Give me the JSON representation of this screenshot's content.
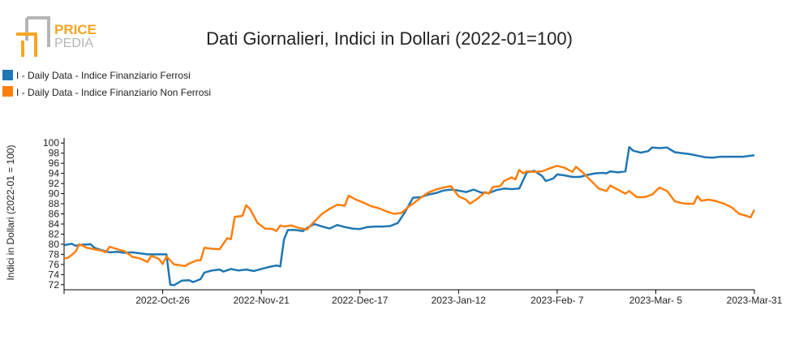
{
  "logo": {
    "line1": "PRICE",
    "line2": "PEDIA"
  },
  "colors": {
    "ferrosi": "#1f77b4",
    "non_ferrosi": "#ff7f0e",
    "logo_orange": "#f5a623",
    "logo_gray": "#b5b5b5"
  },
  "chart_data": {
    "type": "line",
    "title": "Dati Giornalieri, Indici in Dollari (2022-01=100)",
    "ylabel": "Indici in Dollari (2022-01 = 100)",
    "xlabel": "",
    "ylim": [
      71,
      101
    ],
    "y_ticks": [
      72,
      74,
      76,
      78,
      80,
      82,
      84,
      86,
      88,
      90,
      92,
      94,
      96,
      98,
      100
    ],
    "x_range": [
      "2022-09-30",
      "2023-03-31"
    ],
    "x_ticks": [
      {
        "date": "2022-10-26",
        "label": "2022-Oct-26"
      },
      {
        "date": "2022-11-21",
        "label": "2022-Nov-21"
      },
      {
        "date": "2022-12-17",
        "label": "2022-Dec-17"
      },
      {
        "date": "2023-01-12",
        "label": "2023-Jan-12"
      },
      {
        "date": "2023-02-07",
        "label": "2023-Feb- 7"
      },
      {
        "date": "2023-03-05",
        "label": "2023-Mar- 5"
      },
      {
        "date": "2023-03-31",
        "label": "2023-Mar-31"
      }
    ],
    "legend_position": "top-left",
    "grid": false,
    "series": [
      {
        "name": "I - Daily Data - Indice Finanziario Ferrosi",
        "color": "#1f77b4",
        "points": [
          [
            "2022-09-30",
            79.8
          ],
          [
            "2022-10-02",
            80.1
          ],
          [
            "2022-10-03",
            79.7
          ],
          [
            "2022-10-05",
            79.9
          ],
          [
            "2022-10-07",
            80.0
          ],
          [
            "2022-10-08",
            79.3
          ],
          [
            "2022-10-10",
            78.8
          ],
          [
            "2022-10-12",
            78.4
          ],
          [
            "2022-10-14",
            78.5
          ],
          [
            "2022-10-16",
            78.3
          ],
          [
            "2022-10-18",
            78.4
          ],
          [
            "2022-10-20",
            78.2
          ],
          [
            "2022-10-22",
            78.0
          ],
          [
            "2022-10-24",
            78.0
          ],
          [
            "2022-10-26",
            78.0
          ],
          [
            "2022-10-27",
            78.0
          ],
          [
            "2022-10-28",
            72.0
          ],
          [
            "2022-10-29",
            71.9
          ],
          [
            "2022-10-31",
            72.8
          ],
          [
            "2022-11-02",
            72.9
          ],
          [
            "2022-11-03",
            72.5
          ],
          [
            "2022-11-05",
            73.1
          ],
          [
            "2022-11-06",
            74.4
          ],
          [
            "2022-11-08",
            74.8
          ],
          [
            "2022-11-10",
            75.0
          ],
          [
            "2022-11-11",
            74.6
          ],
          [
            "2022-11-13",
            75.1
          ],
          [
            "2022-11-15",
            74.8
          ],
          [
            "2022-11-17",
            75.0
          ],
          [
            "2022-11-19",
            74.7
          ],
          [
            "2022-11-21",
            75.1
          ],
          [
            "2022-11-23",
            75.5
          ],
          [
            "2022-11-25",
            75.8
          ],
          [
            "2022-11-26",
            75.6
          ],
          [
            "2022-11-27",
            81.0
          ],
          [
            "2022-11-28",
            82.8
          ],
          [
            "2022-11-30",
            82.8
          ],
          [
            "2022-12-02",
            82.6
          ],
          [
            "2022-12-03",
            83.2
          ],
          [
            "2022-12-05",
            84.0
          ],
          [
            "2022-12-07",
            83.5
          ],
          [
            "2022-12-09",
            83.1
          ],
          [
            "2022-12-11",
            83.8
          ],
          [
            "2022-12-13",
            83.4
          ],
          [
            "2022-12-15",
            83.1
          ],
          [
            "2022-12-17",
            83.0
          ],
          [
            "2022-12-19",
            83.4
          ],
          [
            "2022-12-21",
            83.5
          ],
          [
            "2022-12-23",
            83.5
          ],
          [
            "2022-12-25",
            83.6
          ],
          [
            "2022-12-27",
            84.2
          ],
          [
            "2022-12-29",
            86.5
          ],
          [
            "2022-12-31",
            89.2
          ],
          [
            "2023-01-02",
            89.3
          ],
          [
            "2023-01-04",
            89.8
          ],
          [
            "2023-01-06",
            90.1
          ],
          [
            "2023-01-08",
            90.6
          ],
          [
            "2023-01-10",
            90.8
          ],
          [
            "2023-01-12",
            90.6
          ],
          [
            "2023-01-14",
            90.3
          ],
          [
            "2023-01-16",
            90.8
          ],
          [
            "2023-01-18",
            90.2
          ],
          [
            "2023-01-20",
            90.1
          ],
          [
            "2023-01-22",
            90.7
          ],
          [
            "2023-01-24",
            91.0
          ],
          [
            "2023-01-26",
            90.9
          ],
          [
            "2023-01-28",
            91.0
          ],
          [
            "2023-01-30",
            94.2
          ],
          [
            "2023-02-01",
            94.5
          ],
          [
            "2023-02-03",
            93.5
          ],
          [
            "2023-02-04",
            92.5
          ],
          [
            "2023-02-06",
            93.0
          ],
          [
            "2023-02-07",
            93.8
          ],
          [
            "2023-02-09",
            93.6
          ],
          [
            "2023-02-11",
            93.3
          ],
          [
            "2023-02-13",
            93.3
          ],
          [
            "2023-02-15",
            93.7
          ],
          [
            "2023-02-17",
            94.0
          ],
          [
            "2023-02-19",
            94.1
          ],
          [
            "2023-02-20",
            94.0
          ],
          [
            "2023-02-21",
            94.4
          ],
          [
            "2023-02-23",
            94.2
          ],
          [
            "2023-02-25",
            94.4
          ],
          [
            "2023-02-26",
            99.2
          ],
          [
            "2023-02-27",
            98.5
          ],
          [
            "2023-03-01",
            98.1
          ],
          [
            "2023-03-03",
            98.4
          ],
          [
            "2023-03-04",
            99.1
          ],
          [
            "2023-03-06",
            99.0
          ],
          [
            "2023-03-08",
            99.1
          ],
          [
            "2023-03-10",
            98.2
          ],
          [
            "2023-03-12",
            98.0
          ],
          [
            "2023-03-14",
            97.8
          ],
          [
            "2023-03-16",
            97.5
          ],
          [
            "2023-03-18",
            97.2
          ],
          [
            "2023-03-20",
            97.1
          ],
          [
            "2023-03-22",
            97.3
          ],
          [
            "2023-03-24",
            97.3
          ],
          [
            "2023-03-26",
            97.3
          ],
          [
            "2023-03-28",
            97.3
          ],
          [
            "2023-03-31",
            97.6
          ]
        ]
      },
      {
        "name": "I - Daily Data - Indice Finanziario Non Ferrosi",
        "color": "#ff7f0e",
        "points": [
          [
            "2022-09-30",
            77.2
          ],
          [
            "2022-10-01",
            77.3
          ],
          [
            "2022-10-03",
            78.5
          ],
          [
            "2022-10-04",
            80.0
          ],
          [
            "2022-10-06",
            79.3
          ],
          [
            "2022-10-08",
            79.0
          ],
          [
            "2022-10-10",
            78.7
          ],
          [
            "2022-10-11",
            78.4
          ],
          [
            "2022-10-12",
            79.5
          ],
          [
            "2022-10-14",
            79.0
          ],
          [
            "2022-10-16",
            78.6
          ],
          [
            "2022-10-18",
            77.5
          ],
          [
            "2022-10-20",
            77.2
          ],
          [
            "2022-10-22",
            76.5
          ],
          [
            "2022-10-23",
            77.7
          ],
          [
            "2022-10-25",
            77.1
          ],
          [
            "2022-10-26",
            76.1
          ],
          [
            "2022-10-27",
            77.6
          ],
          [
            "2022-10-29",
            76.0
          ],
          [
            "2022-10-31",
            75.8
          ],
          [
            "2022-11-01",
            75.7
          ],
          [
            "2022-11-02",
            76.2
          ],
          [
            "2022-11-04",
            76.8
          ],
          [
            "2022-11-05",
            76.8
          ],
          [
            "2022-11-06",
            79.3
          ],
          [
            "2022-11-08",
            79.1
          ],
          [
            "2022-11-10",
            79.0
          ],
          [
            "2022-11-12",
            81.2
          ],
          [
            "2022-11-13",
            81.0
          ],
          [
            "2022-11-14",
            85.4
          ],
          [
            "2022-11-16",
            85.6
          ],
          [
            "2022-11-17",
            87.7
          ],
          [
            "2022-11-18",
            87.0
          ],
          [
            "2022-11-20",
            84.2
          ],
          [
            "2022-11-22",
            83.1
          ],
          [
            "2022-11-24",
            83.0
          ],
          [
            "2022-11-25",
            82.6
          ],
          [
            "2022-11-26",
            83.7
          ],
          [
            "2022-11-27",
            83.5
          ],
          [
            "2022-11-29",
            83.7
          ],
          [
            "2022-12-01",
            83.2
          ],
          [
            "2022-12-03",
            82.9
          ],
          [
            "2022-12-05",
            84.5
          ],
          [
            "2022-12-07",
            86.0
          ],
          [
            "2022-12-09",
            87.0
          ],
          [
            "2022-12-11",
            87.8
          ],
          [
            "2022-12-13",
            87.6
          ],
          [
            "2022-12-14",
            89.6
          ],
          [
            "2022-12-16",
            88.8
          ],
          [
            "2022-12-18",
            88.2
          ],
          [
            "2022-12-20",
            87.5
          ],
          [
            "2022-12-22",
            87.1
          ],
          [
            "2022-12-24",
            86.5
          ],
          [
            "2022-12-26",
            86.0
          ],
          [
            "2022-12-28",
            86.2
          ],
          [
            "2022-12-30",
            87.5
          ],
          [
            "2022-12-31",
            88.0
          ],
          [
            "2023-01-02",
            89.2
          ],
          [
            "2023-01-04",
            90.2
          ],
          [
            "2023-01-06",
            90.8
          ],
          [
            "2023-01-08",
            91.2
          ],
          [
            "2023-01-10",
            91.5
          ],
          [
            "2023-01-12",
            89.5
          ],
          [
            "2023-01-14",
            88.8
          ],
          [
            "2023-01-15",
            88.0
          ],
          [
            "2023-01-17",
            89.0
          ],
          [
            "2023-01-19",
            90.3
          ],
          [
            "2023-01-20",
            90.0
          ],
          [
            "2023-01-21",
            91.3
          ],
          [
            "2023-01-23",
            91.5
          ],
          [
            "2023-01-24",
            92.5
          ],
          [
            "2023-01-26",
            93.2
          ],
          [
            "2023-01-27",
            92.8
          ],
          [
            "2023-01-28",
            94.7
          ],
          [
            "2023-01-29",
            94.0
          ],
          [
            "2023-01-30",
            94.4
          ],
          [
            "2023-02-01",
            94.3
          ],
          [
            "2023-02-03",
            94.4
          ],
          [
            "2023-02-05",
            95.0
          ],
          [
            "2023-02-07",
            95.5
          ],
          [
            "2023-02-09",
            95.1
          ],
          [
            "2023-02-11",
            94.3
          ],
          [
            "2023-02-12",
            95.3
          ],
          [
            "2023-02-14",
            94.0
          ],
          [
            "2023-02-16",
            92.5
          ],
          [
            "2023-02-18",
            91.0
          ],
          [
            "2023-02-20",
            90.5
          ],
          [
            "2023-02-21",
            91.6
          ],
          [
            "2023-02-23",
            90.8
          ],
          [
            "2023-02-25",
            90.0
          ],
          [
            "2023-02-26",
            90.5
          ],
          [
            "2023-02-28",
            89.3
          ],
          [
            "2023-03-02",
            89.3
          ],
          [
            "2023-03-04",
            89.8
          ],
          [
            "2023-03-06",
            91.2
          ],
          [
            "2023-03-08",
            90.5
          ],
          [
            "2023-03-10",
            88.5
          ],
          [
            "2023-03-12",
            88.1
          ],
          [
            "2023-03-13",
            88.0
          ],
          [
            "2023-03-15",
            88.0
          ],
          [
            "2023-03-16",
            89.5
          ],
          [
            "2023-03-17",
            88.6
          ],
          [
            "2023-03-19",
            88.8
          ],
          [
            "2023-03-21",
            88.5
          ],
          [
            "2023-03-23",
            88.0
          ],
          [
            "2023-03-25",
            87.3
          ],
          [
            "2023-03-27",
            86.0
          ],
          [
            "2023-03-29",
            85.6
          ],
          [
            "2023-03-30",
            85.3
          ],
          [
            "2023-03-31",
            86.8
          ]
        ]
      }
    ]
  }
}
